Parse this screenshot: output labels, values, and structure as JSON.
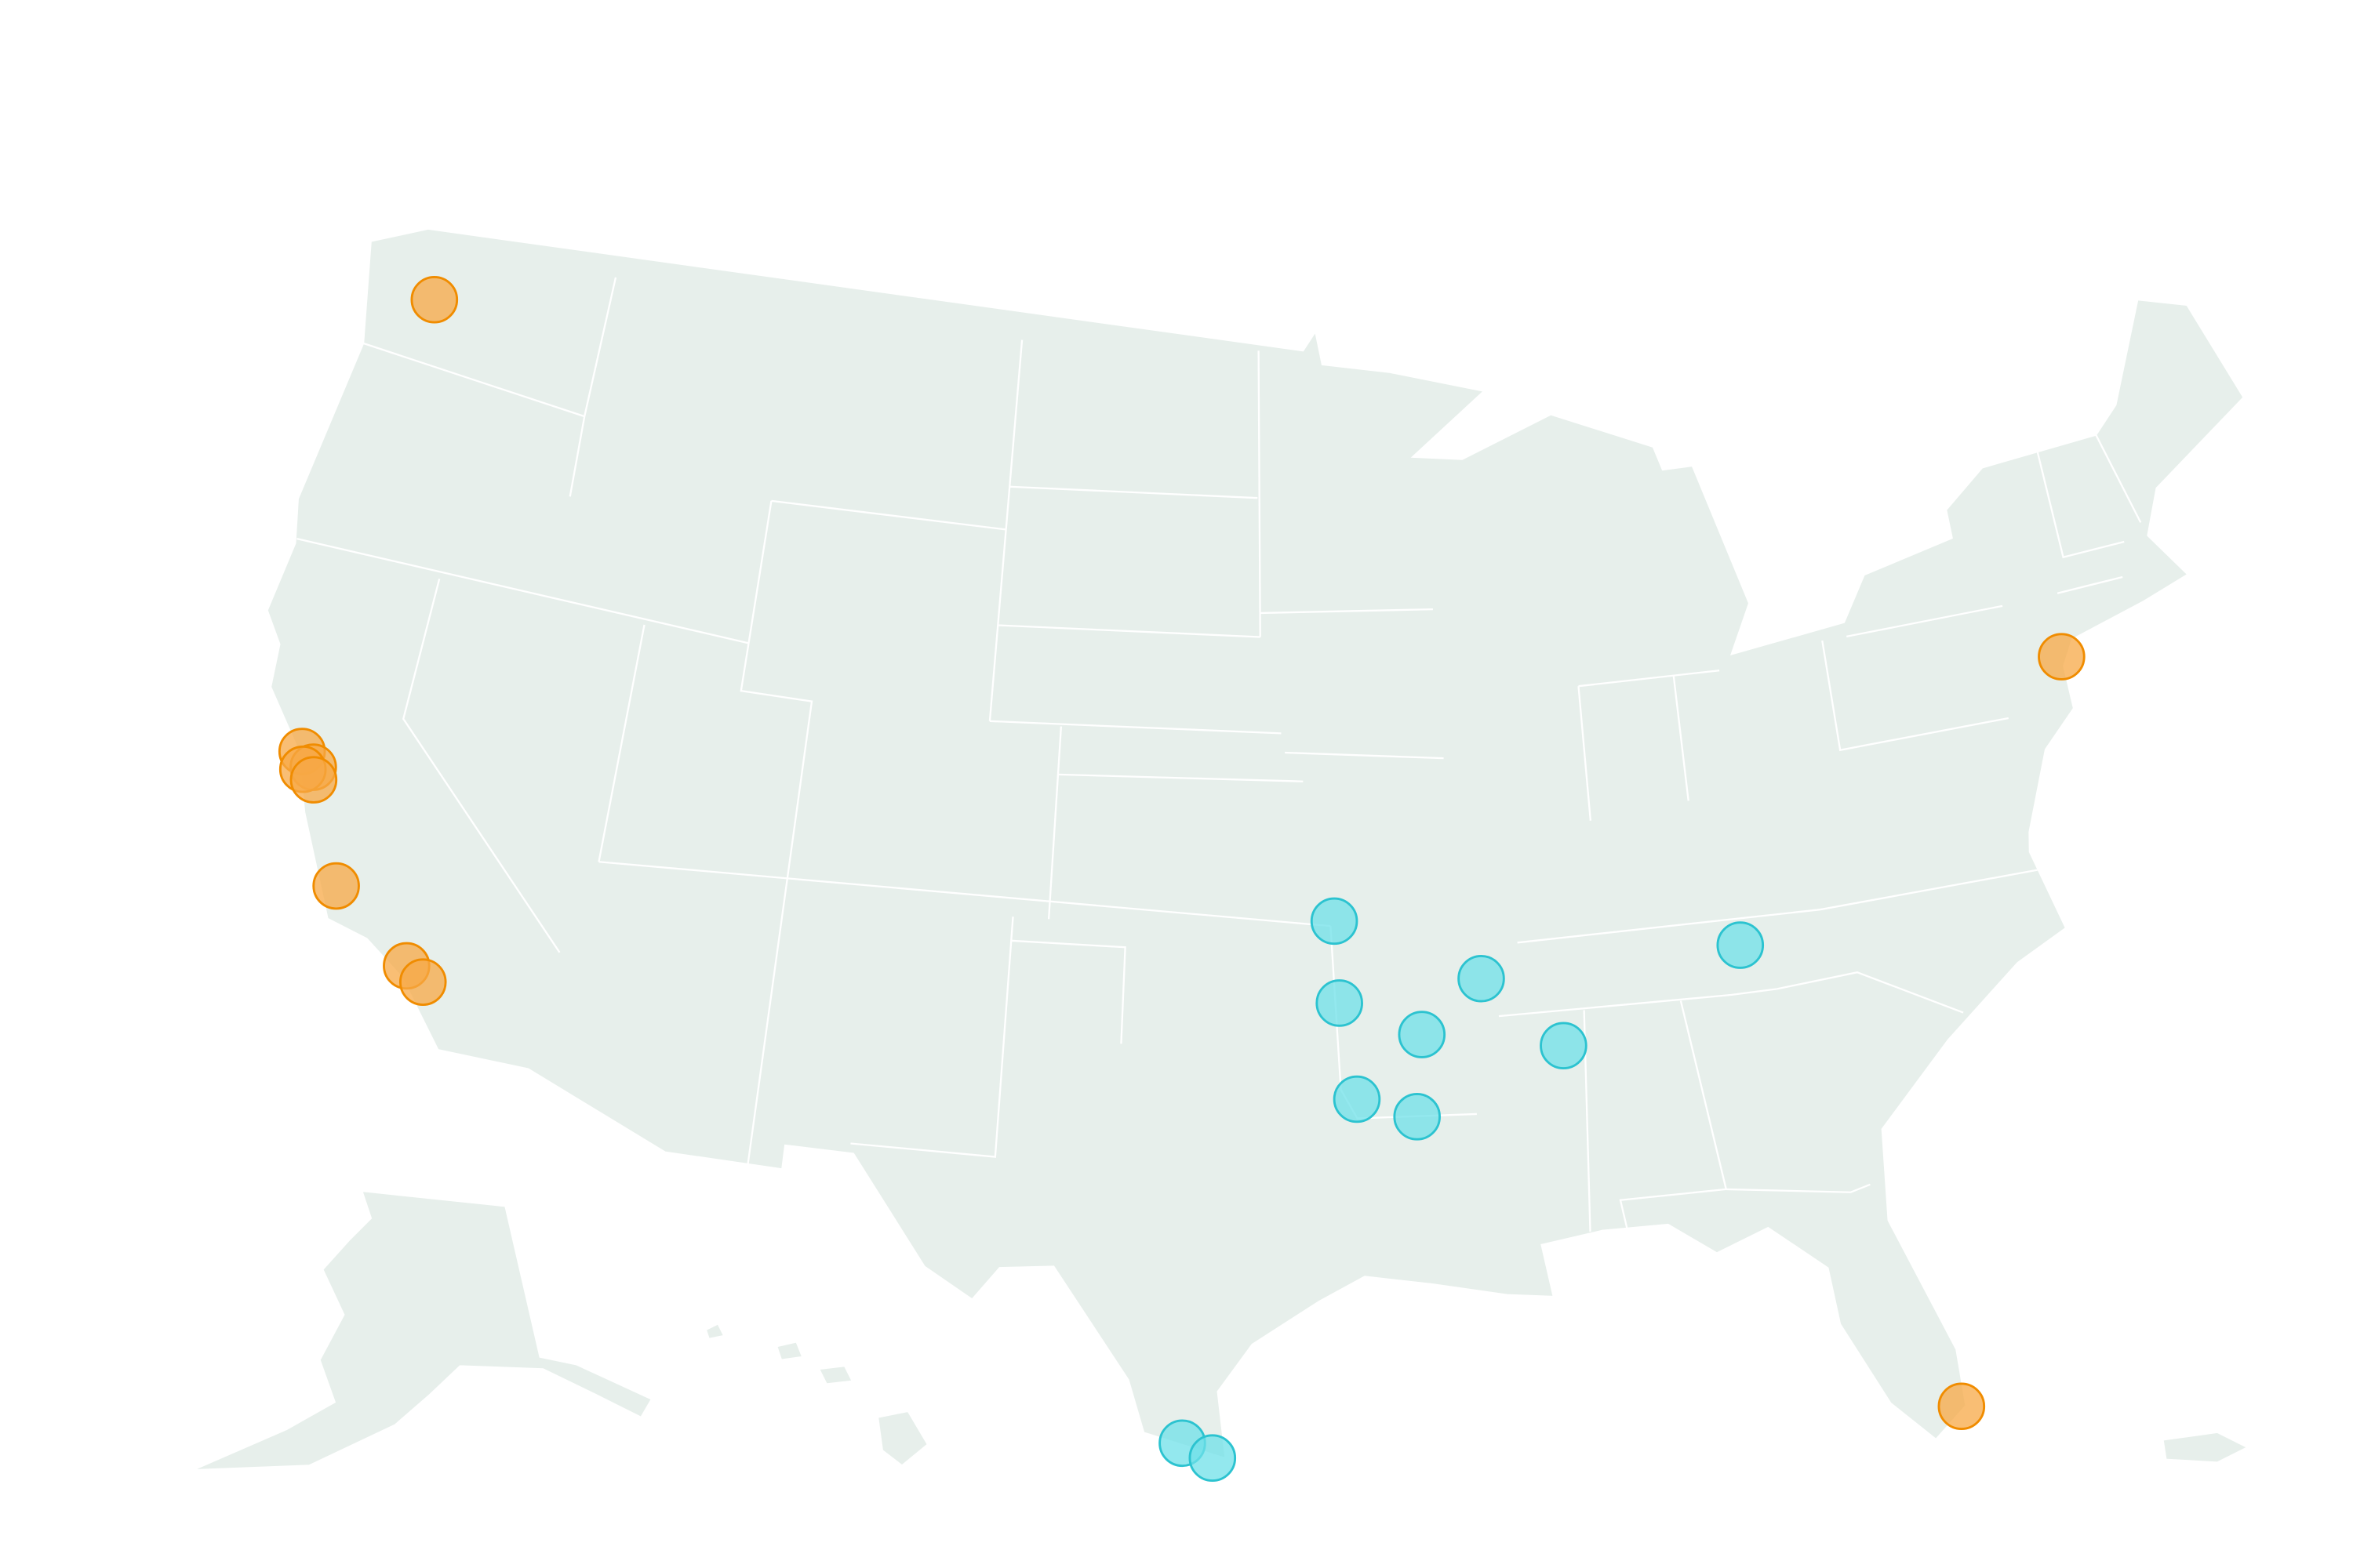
{
  "groups": [
    {
      "color": "#f7a845",
      "stroke": "#f08c00",
      "points": [
        {
          "lon": -122.3,
          "lat": 47.6
        },
        {
          "lon": -122.4,
          "lat": 37.8
        },
        {
          "lon": -122.0,
          "lat": 37.55
        },
        {
          "lon": -122.25,
          "lat": 37.45
        },
        {
          "lon": -121.9,
          "lat": 37.3
        },
        {
          "lon": -120.6,
          "lat": 35.3
        },
        {
          "lon": -118.35,
          "lat": 34.05
        },
        {
          "lon": -117.85,
          "lat": 33.8
        },
        {
          "lon": -74.0,
          "lat": 40.7
        },
        {
          "lon": -80.2,
          "lat": 25.8
        }
      ]
    },
    {
      "color": "#6fe0e8",
      "stroke": "#2cc3d0",
      "points": [
        {
          "lon": -94.5,
          "lat": 37.1
        },
        {
          "lon": -94.4,
          "lat": 35.4
        },
        {
          "lon": -90.7,
          "lat": 35.8
        },
        {
          "lon": -92.3,
          "lat": 34.7
        },
        {
          "lon": -94.0,
          "lat": 33.4
        },
        {
          "lon": -92.5,
          "lat": 33.0
        },
        {
          "lon": -88.7,
          "lat": 34.3
        },
        {
          "lon": -83.9,
          "lat": 36.0
        },
        {
          "lon": -98.2,
          "lat": 26.2
        },
        {
          "lon": -97.5,
          "lat": 25.9
        }
      ]
    }
  ]
}
